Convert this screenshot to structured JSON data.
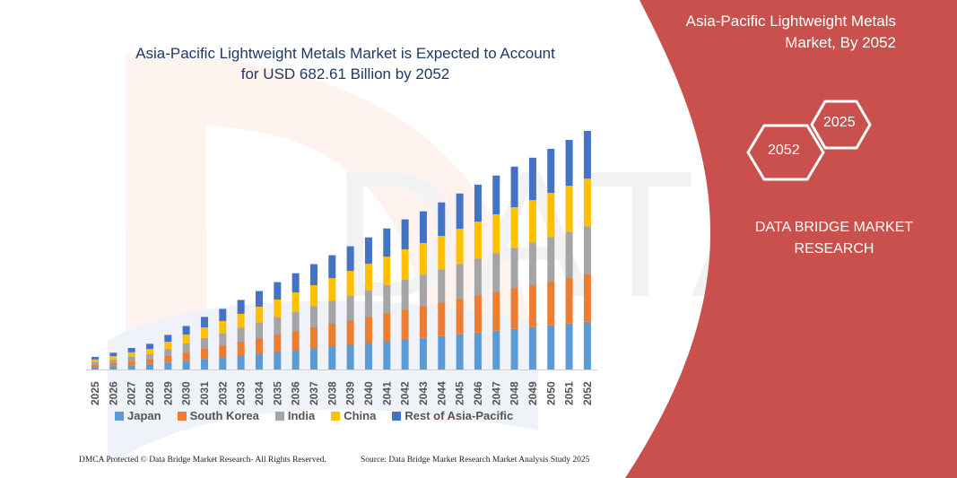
{
  "header": {
    "title_line1": "Asia-Pacific Lightweight Metals Market is Expected to Account",
    "title_line2": "for USD 682.61 Billion by 2052"
  },
  "side_panel": {
    "title_line1": "Asia-Pacific Lightweight Metals",
    "title_line2": "Market, By 2052",
    "hex_start": "2025",
    "hex_end": "2052",
    "brand_line1": "DATA BRIDGE MARKET",
    "brand_line2": "RESEARCH",
    "color": "#c9504c"
  },
  "footer": {
    "left": "DMCA Protected © Data Bridge Market Research-  All Rights Reserved.",
    "right": "Source:  Data Bridge Market Research  Market Analysis Study 2025"
  },
  "chart_data": {
    "type": "bar",
    "stacked": true,
    "title": "Asia-Pacific Lightweight Metals Market is Expected to Account for USD 682.61 Billion by 2052",
    "xlabel": "",
    "ylabel": "",
    "ylim": [
      0,
      690
    ],
    "grid": false,
    "legend_position": "bottom",
    "categories": [
      "2025",
      "2026",
      "2027",
      "2028",
      "2029",
      "2030",
      "2031",
      "2032",
      "2033",
      "2034",
      "2035",
      "2036",
      "2037",
      "2038",
      "2039",
      "2040",
      "2041",
      "2042",
      "2043",
      "2044",
      "2045",
      "2046",
      "2047",
      "2048",
      "2049",
      "2050",
      "2051",
      "2052"
    ],
    "series": [
      {
        "name": "Japan",
        "color": "#5b9bd5",
        "values": [
          7.2,
          9.6,
          12.3,
          14.7,
          19.8,
          24.9,
          30.1,
          34.7,
          39.8,
          44.9,
          50.0,
          55.1,
          60.3,
          65.4,
          70.5,
          75.6,
          80.7,
          85.9,
          90.5,
          95.6,
          100.7,
          105.8,
          111.0,
          116.1,
          121.2,
          126.3,
          131.4,
          136.5
        ]
      },
      {
        "name": "South Korea",
        "color": "#ed7d31",
        "values": [
          7.2,
          9.6,
          12.3,
          14.7,
          19.8,
          24.9,
          30.1,
          34.7,
          39.8,
          44.9,
          50.0,
          55.1,
          60.3,
          65.4,
          70.5,
          75.6,
          80.7,
          85.9,
          90.5,
          95.6,
          100.7,
          105.8,
          111.0,
          116.1,
          121.2,
          126.3,
          131.4,
          136.5
        ]
      },
      {
        "name": "India",
        "color": "#a5a5a5",
        "values": [
          7.2,
          9.6,
          12.3,
          14.7,
          19.8,
          24.9,
          30.1,
          34.7,
          39.8,
          44.9,
          50.0,
          55.1,
          60.3,
          65.4,
          70.5,
          75.6,
          80.7,
          85.9,
          90.5,
          95.6,
          100.7,
          105.8,
          111.0,
          116.1,
          121.2,
          126.3,
          131.4,
          136.5
        ]
      },
      {
        "name": "China",
        "color": "#ffc000",
        "values": [
          7.2,
          9.6,
          12.3,
          14.7,
          19.8,
          24.9,
          30.1,
          34.7,
          39.8,
          44.9,
          50.0,
          55.1,
          60.3,
          65.4,
          70.5,
          75.6,
          80.7,
          85.9,
          90.5,
          95.6,
          100.7,
          105.8,
          111.0,
          116.1,
          121.2,
          126.3,
          131.4,
          136.5
        ]
      },
      {
        "name": "Rest of Asia-Pacific",
        "color": "#4472c4",
        "values": [
          7.2,
          9.6,
          12.3,
          14.7,
          19.8,
          24.9,
          30.1,
          34.7,
          39.8,
          44.9,
          50.0,
          55.1,
          60.3,
          65.4,
          70.5,
          75.6,
          80.7,
          85.9,
          90.5,
          95.6,
          100.7,
          105.8,
          111.0,
          116.1,
          121.2,
          126.3,
          131.4,
          136.6
        ]
      }
    ]
  }
}
